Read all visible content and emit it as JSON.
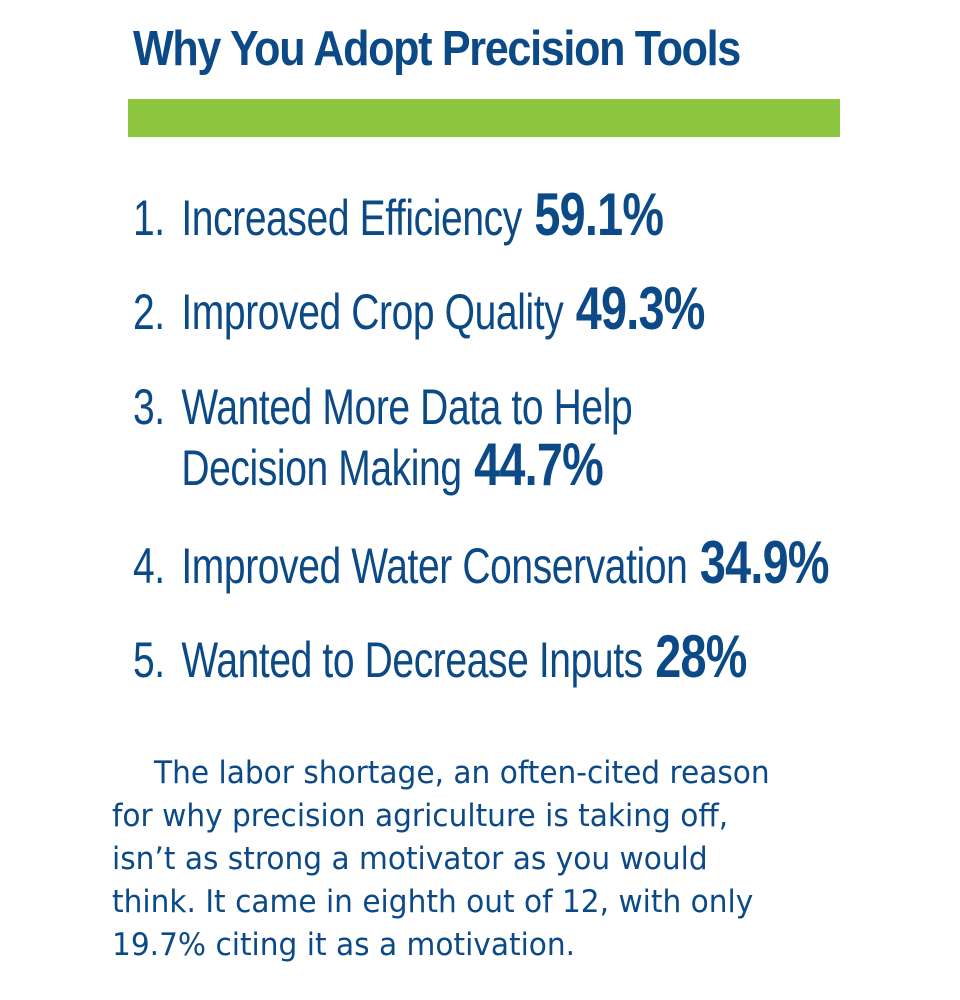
{
  "title": "Why You Adopt Precision Tools",
  "colors": {
    "text": "#0b4a86",
    "accent_bar": "#8dc63f",
    "background": "#ffffff"
  },
  "items": [
    {
      "number": "1.",
      "label": "Increased Efficiency",
      "label_line2": "",
      "percent": "59.1%"
    },
    {
      "number": "2.",
      "label": "Improved Crop Quality",
      "label_line2": "",
      "percent": "49.3%"
    },
    {
      "number": "3.",
      "label": "Wanted More Data to Help",
      "label_line2": "Decision Making",
      "percent": "44.7%"
    },
    {
      "number": "4.",
      "label": "Improved Water Conservation",
      "label_line2": "",
      "percent": "34.9%"
    },
    {
      "number": "5.",
      "label": "Wanted to Decrease Inputs",
      "label_line2": "",
      "percent": "28%"
    }
  ],
  "note": {
    "lines": [
      "The labor shortage, an often-cited reason",
      "for why precision agriculture is taking off,",
      "isn’t as strong a motivator as you would",
      "think. It came in eighth out of 12, with only",
      "19.7% citing it as a motivation."
    ]
  }
}
